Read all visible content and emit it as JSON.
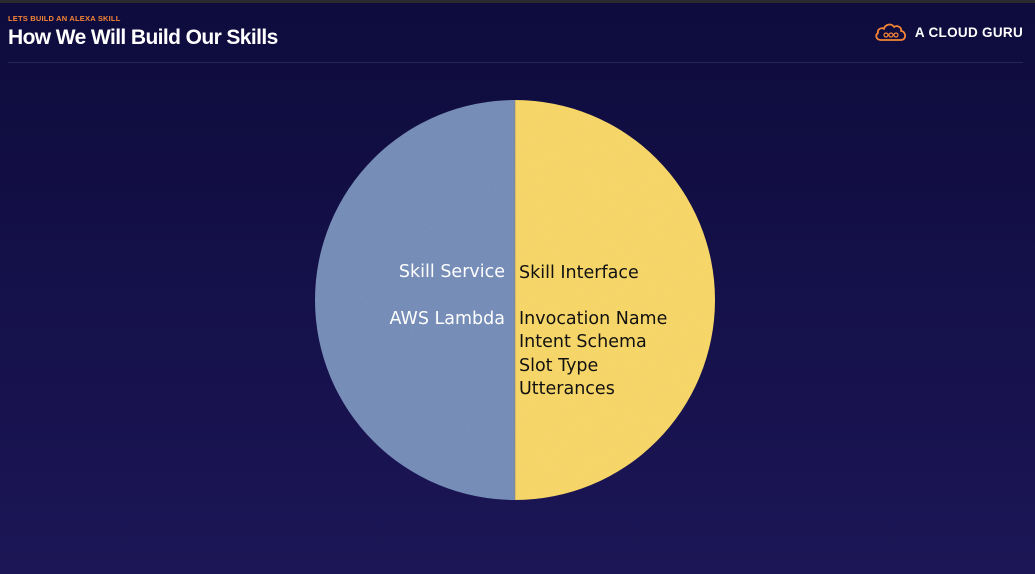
{
  "header": {
    "kicker": "LETS BUILD AN ALEXA SKILL",
    "title": "How We Will Build Our Skills"
  },
  "brand": {
    "name": "A CLOUD GURU",
    "icon": "cloud-logo-icon",
    "accent_color": "#f58536"
  },
  "diagram": {
    "left_half": {
      "color": "#7189b5",
      "heading": "Skill Service",
      "items": [
        "AWS Lambda"
      ]
    },
    "right_half": {
      "color": "#f6d463",
      "heading": "Skill Interface",
      "items": [
        "Invocation Name",
        "Intent Schema",
        "Slot Type",
        "Utterances"
      ]
    }
  }
}
